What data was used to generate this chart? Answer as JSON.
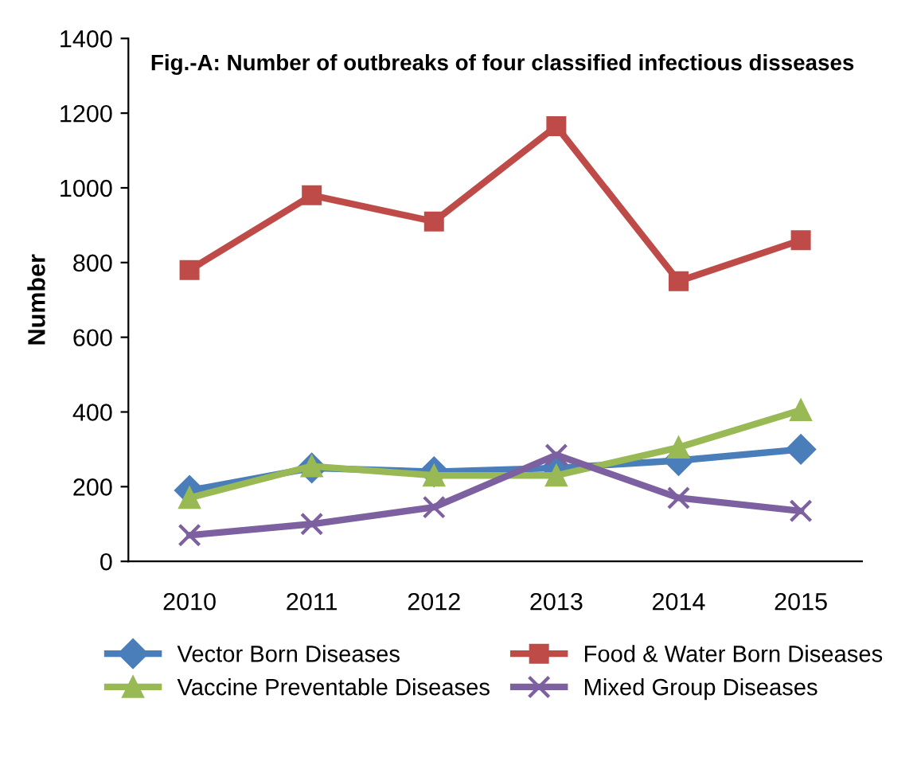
{
  "chart_data": {
    "type": "line",
    "title": "Fig.-A: Number of outbreaks of four classified infectious disseases",
    "ylabel": "Number",
    "categories": [
      "2010",
      "2011",
      "2012",
      "2013",
      "2014",
      "2015"
    ],
    "series": [
      {
        "name": "Vector Born Diseases",
        "color": "#4a7ebb",
        "marker": "diamond",
        "values": [
          190,
          250,
          240,
          250,
          270,
          300
        ]
      },
      {
        "name": "Food & Water Born Diseases",
        "color": "#be4b48",
        "marker": "square",
        "values": [
          780,
          980,
          910,
          1165,
          750,
          860
        ]
      },
      {
        "name": "Vaccine Preventable Diseases",
        "color": "#98b954",
        "marker": "triangle",
        "values": [
          170,
          255,
          230,
          230,
          305,
          405
        ]
      },
      {
        "name": "Mixed Group Diseases",
        "color": "#7d60a0",
        "marker": "cross",
        "values": [
          70,
          100,
          145,
          285,
          170,
          135
        ]
      }
    ],
    "ylim": [
      0,
      1400
    ],
    "yticks": [
      0,
      200,
      400,
      600,
      800,
      1000,
      1200,
      1400
    ],
    "grid": false,
    "legend": "bottom"
  }
}
